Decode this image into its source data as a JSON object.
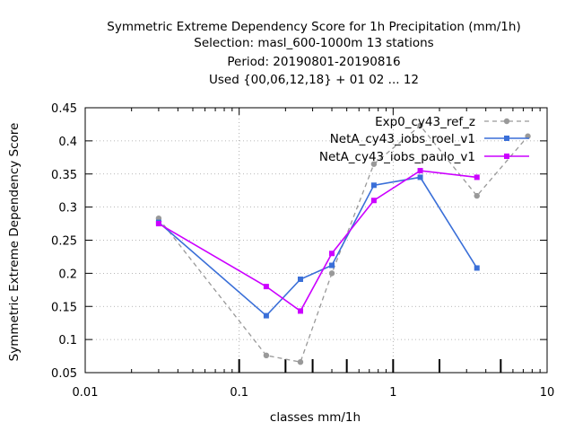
{
  "chart_data": {
    "type": "line",
    "title_lines": [
      "Symmetric Extreme Dependency Score  for 1h Precipitation (mm/1h)",
      "Selection: masl_600-1000m     13 stations",
      "Period: 20190801-20190816",
      "Used {00,06,12,18} + 01 02 ... 12"
    ],
    "xlabel": "classes mm/1h",
    "ylabel": "Symmetric Extreme Dependency Score",
    "x_scale": "log",
    "xlim": [
      0.01,
      10
    ],
    "ylim": [
      0.05,
      0.45
    ],
    "x_ticks": [
      0.01,
      0.1,
      1,
      10
    ],
    "x_tick_labels": [
      "0.01",
      "0.1",
      "1",
      "10"
    ],
    "y_ticks": [
      0.05,
      0.1,
      0.15,
      0.2,
      0.25,
      0.3,
      0.35,
      0.4,
      0.45
    ],
    "y_tick_labels": [
      "0.05",
      "0.1",
      "0.15",
      "0.2",
      "0.25",
      "0.3",
      "0.35",
      "0.4",
      "0.45"
    ],
    "grid": true,
    "legend_position": "top-right",
    "series": [
      {
        "name": "Exp0_cy43_ref_z",
        "color": "#999999",
        "style": "dashed",
        "marker": "circle",
        "points": [
          [
            0.03,
            0.283
          ],
          [
            0.15,
            0.076
          ],
          [
            0.25,
            0.066
          ],
          [
            0.4,
            0.2
          ],
          [
            0.75,
            0.365
          ],
          [
            1.5,
            0.423
          ],
          [
            3.5,
            0.317
          ],
          [
            7.5,
            0.407
          ]
        ]
      },
      {
        "name": "NetA_cy43_iobs_roel_v1",
        "color": "#3a6fd8",
        "style": "solid",
        "marker": "square",
        "points": [
          [
            0.03,
            0.277
          ],
          [
            0.15,
            0.136
          ],
          [
            0.25,
            0.191
          ],
          [
            0.4,
            0.212
          ],
          [
            0.75,
            0.333
          ],
          [
            1.5,
            0.345
          ],
          [
            3.5,
            0.208
          ]
        ]
      },
      {
        "name": "NetA_cy43_iobs_paulo_v1",
        "color": "#cc00ff",
        "style": "solid",
        "marker": "square",
        "points": [
          [
            0.03,
            0.275
          ],
          [
            0.15,
            0.18
          ],
          [
            0.25,
            0.143
          ],
          [
            0.4,
            0.23
          ],
          [
            0.75,
            0.31
          ],
          [
            1.5,
            0.355
          ],
          [
            3.5,
            0.345
          ]
        ]
      }
    ],
    "rug_x": [
      0.1,
      0.2,
      0.3,
      0.5,
      1,
      2,
      5
    ]
  }
}
